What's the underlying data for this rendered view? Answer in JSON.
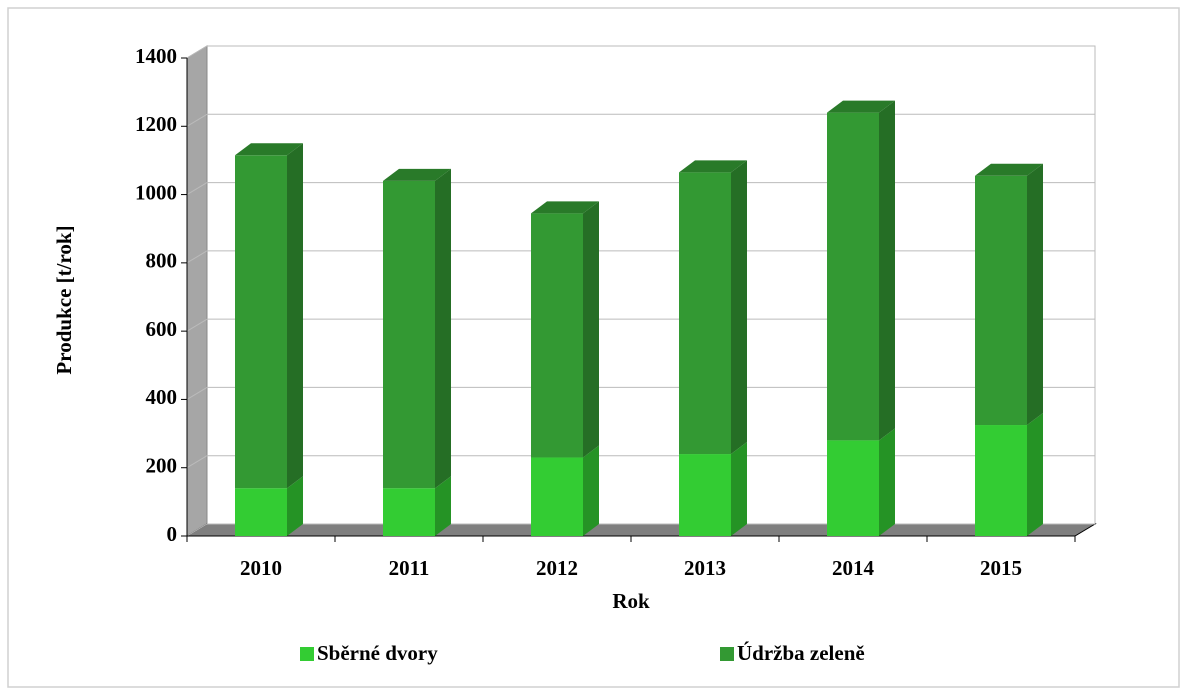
{
  "chart_data": {
    "type": "bar",
    "stacked": true,
    "three_d": true,
    "x_label": "Rok",
    "y_label": "Produkce [t/rok]",
    "categories": [
      "2010",
      "2011",
      "2012",
      "2013",
      "2014",
      "2015"
    ],
    "series": [
      {
        "name": "Sběrné dvory",
        "color": "#33cc33",
        "values": [
          140,
          140,
          230,
          240,
          280,
          325
        ]
      },
      {
        "name": "Údržba zeleně",
        "color": "#339933",
        "values": [
          975,
          900,
          715,
          825,
          960,
          730
        ]
      }
    ],
    "ylim": [
      0,
      1400
    ],
    "yticks": [
      0,
      200,
      400,
      600,
      800,
      1000,
      1200,
      1400
    ],
    "grid": true
  }
}
